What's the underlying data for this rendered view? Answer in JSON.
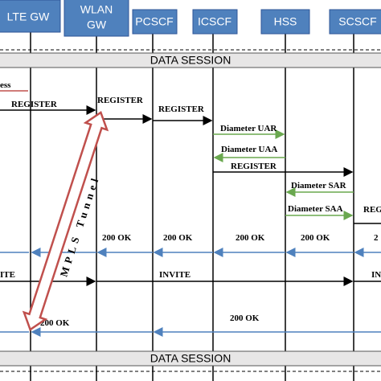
{
  "headers": [
    "LTE  GW",
    "WLAN",
    "GW",
    "PCSCF",
    "ICSCF",
    "HSS",
    "SCSCF"
  ],
  "sessions": [
    "DATA SESSION",
    "DATA SESSION"
  ],
  "tunnel": "MPLS Tunnel",
  "messages": [
    "ess",
    "REGISTER",
    "REGISTER",
    "REGISTER",
    "Diameter UAR",
    "Diameter UAA",
    "REGISTER",
    "Diameter SAR",
    "Diameter SAA",
    "REG",
    "200 OK",
    "200 OK",
    "200 OK",
    "200 OK",
    "2",
    "ITE",
    "INVITE",
    "INV",
    "200 OK",
    "200 OK"
  ]
}
